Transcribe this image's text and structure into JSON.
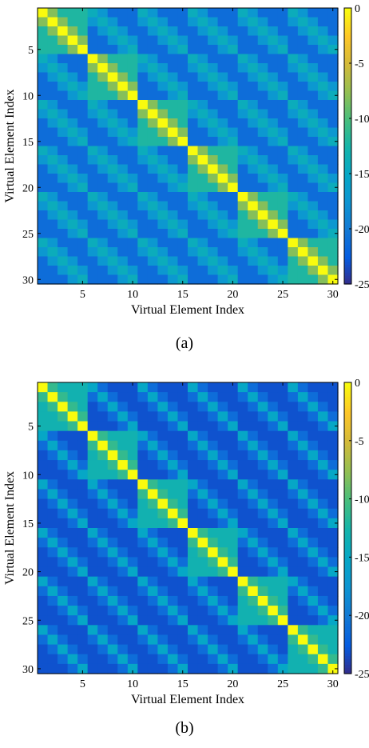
{
  "chart_data": [
    {
      "type": "heatmap",
      "panel_label": "(a)",
      "xlabel": "Virtual Element Index",
      "ylabel": "Virtual Element Index",
      "x_ticks": [
        5,
        10,
        15,
        20,
        25,
        30
      ],
      "y_ticks": [
        5,
        10,
        15,
        20,
        25,
        30
      ],
      "n": 30,
      "colormap": "parula",
      "clim": [
        -25,
        0
      ],
      "colorbar_ticks": [
        0,
        -5,
        -10,
        -15,
        -20,
        -25
      ],
      "pattern": {
        "diagonal": 0,
        "block_size": 5,
        "in_block_near": -8,
        "in_block_far": -12,
        "offblock_same_position": -14,
        "offblock_adjacent_position": -17,
        "background": -21
      }
    },
    {
      "type": "heatmap",
      "panel_label": "(b)",
      "xlabel": "Virtual Element Index",
      "ylabel": "Virtual Element Index",
      "x_ticks": [
        5,
        10,
        15,
        20,
        25,
        30
      ],
      "y_ticks": [
        5,
        10,
        15,
        20,
        25,
        30
      ],
      "n": 30,
      "colormap": "parula",
      "clim": [
        -25,
        0
      ],
      "colorbar_ticks": [
        0,
        -5,
        -10,
        -15,
        -20,
        -25
      ],
      "pattern": {
        "diagonal": 0,
        "block_size": 5,
        "in_block_near": -11,
        "in_block_far": -13,
        "offblock_same_position": -15,
        "offblock_adjacent_position": -21,
        "background": -23
      }
    }
  ]
}
